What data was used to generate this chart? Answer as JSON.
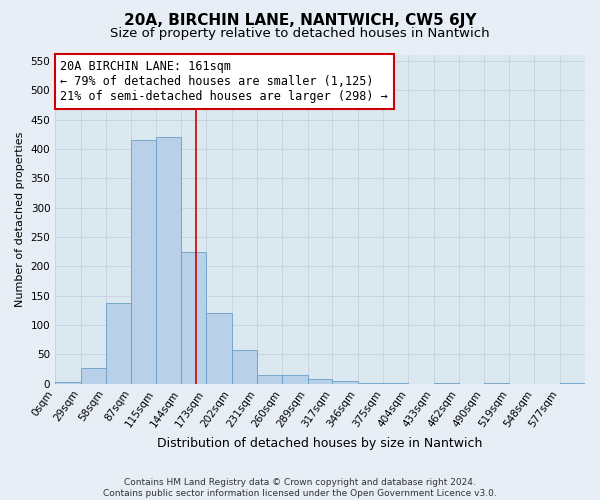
{
  "title": "20A, BIRCHIN LANE, NANTWICH, CW5 6JY",
  "subtitle": "Size of property relative to detached houses in Nantwich",
  "xlabel": "Distribution of detached houses by size in Nantwich",
  "ylabel": "Number of detached properties",
  "bin_edges": [
    0,
    29,
    58,
    87,
    115,
    144,
    173,
    202,
    231,
    260,
    289,
    317,
    346,
    375,
    404,
    433,
    462,
    490,
    519,
    548,
    577,
    606
  ],
  "bar_heights": [
    2,
    27,
    137,
    415,
    420,
    225,
    120,
    57,
    15,
    15,
    8,
    5,
    1,
    1,
    0,
    1,
    0,
    1,
    0,
    0,
    1
  ],
  "bar_color": "#b8d0e8",
  "bar_edge_color": "#6a9fc8",
  "property_line_x": 161,
  "property_line_color": "#cc0000",
  "annotation_box_color": "#cc0000",
  "annotation_line1": "20A BIRCHIN LANE: 161sqm",
  "annotation_line2": "← 79% of detached houses are smaller (1,125)",
  "annotation_line3": "21% of semi-detached houses are larger (298) →",
  "ylim": [
    0,
    560
  ],
  "yticks": [
    0,
    50,
    100,
    150,
    200,
    250,
    300,
    350,
    400,
    450,
    500,
    550
  ],
  "grid_color": "#c8d4e0",
  "bg_color": "#e8eef5",
  "plot_bg_color": "#dce8f0",
  "footer_line1": "Contains HM Land Registry data © Crown copyright and database right 2024.",
  "footer_line2": "Contains public sector information licensed under the Open Government Licence v3.0.",
  "title_fontsize": 11,
  "subtitle_fontsize": 9.5,
  "xlabel_fontsize": 9,
  "ylabel_fontsize": 8,
  "tick_fontsize": 7.5,
  "annotation_fontsize": 8.5,
  "footer_fontsize": 6.5
}
